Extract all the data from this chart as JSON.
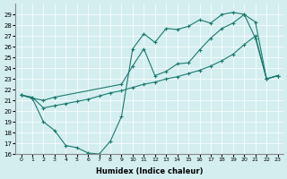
{
  "xlabel": "Humidex (Indice chaleur)",
  "curve1_x": [
    0,
    1,
    2,
    3,
    4,
    5,
    6,
    7,
    8,
    9,
    10,
    11,
    12,
    13,
    14,
    15,
    16,
    17,
    18,
    19,
    20,
    21,
    22,
    23
  ],
  "curve1_y": [
    21.5,
    21.2,
    19.0,
    18.2,
    16.8,
    16.6,
    16.1,
    16.0,
    17.2,
    19.5,
    25.8,
    27.2,
    26.4,
    27.7,
    27.6,
    27.9,
    28.5,
    28.2,
    29.0,
    29.2,
    29.0,
    26.8,
    23.0,
    23.3
  ],
  "curve2_x": [
    0,
    1,
    2,
    3,
    9,
    10,
    11,
    12,
    13,
    14,
    15,
    16,
    17,
    18,
    19,
    20,
    21,
    22,
    23
  ],
  "curve2_y": [
    21.5,
    21.2,
    21.0,
    21.3,
    22.5,
    24.2,
    25.8,
    23.3,
    23.7,
    24.4,
    24.5,
    25.7,
    26.8,
    27.7,
    28.2,
    29.0,
    28.3,
    23.0,
    23.3
  ],
  "curve3_x": [
    0,
    1,
    2,
    3,
    4,
    5,
    6,
    7,
    8,
    9,
    10,
    11,
    12,
    13,
    14,
    15,
    16,
    17,
    18,
    19,
    20,
    21,
    22,
    23
  ],
  "curve3_y": [
    21.5,
    21.3,
    20.3,
    20.5,
    20.7,
    20.9,
    21.1,
    21.4,
    21.7,
    21.9,
    22.2,
    22.5,
    22.7,
    23.0,
    23.2,
    23.5,
    23.8,
    24.2,
    24.7,
    25.3,
    26.2,
    27.0,
    23.0,
    23.3
  ],
  "ylim": [
    16,
    30
  ],
  "xlim": [
    -0.5,
    23.5
  ],
  "yticks": [
    16,
    17,
    18,
    19,
    20,
    21,
    22,
    23,
    24,
    25,
    26,
    27,
    28,
    29
  ],
  "xticks": [
    0,
    1,
    2,
    3,
    4,
    5,
    6,
    7,
    8,
    9,
    10,
    11,
    12,
    13,
    14,
    15,
    16,
    17,
    18,
    19,
    20,
    21,
    22,
    23
  ],
  "line_color": "#1a7a6e",
  "bg_color": "#d4eef0",
  "grid_color": "#ffffff"
}
